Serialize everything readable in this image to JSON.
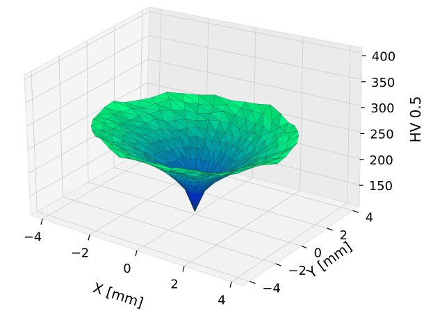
{
  "chart_data": {
    "type": "surface3d",
    "title": "",
    "x": {
      "label": "X [mm]",
      "range": [
        -4.5,
        4.5
      ],
      "ticks": [
        -4,
        -2,
        0,
        2,
        4
      ],
      "tick_labels": [
        "−4",
        "−2",
        "0",
        "2",
        "4"
      ]
    },
    "y": {
      "label": "Y [mm]",
      "range": [
        -4.5,
        4.5
      ],
      "ticks": [
        -4,
        -2,
        0,
        2,
        4
      ],
      "tick_labels": [
        "−4",
        "−2",
        "0",
        "2",
        "4"
      ]
    },
    "z": {
      "label": "HV 0.5",
      "range": [
        110,
        410
      ],
      "ticks": [
        150,
        200,
        250,
        300,
        350,
        400
      ],
      "tick_labels": [
        "150",
        "200",
        "250",
        "300",
        "350",
        "400"
      ]
    },
    "grid": true,
    "surface": {
      "shape": "axisymmetric hardness dip centered at origin",
      "outer_radius_mm": 3.8,
      "rim_value": 275,
      "center_value": 115,
      "colormap": "winter",
      "colormap_colors": [
        "#0000ff",
        "#00ff80"
      ]
    }
  }
}
